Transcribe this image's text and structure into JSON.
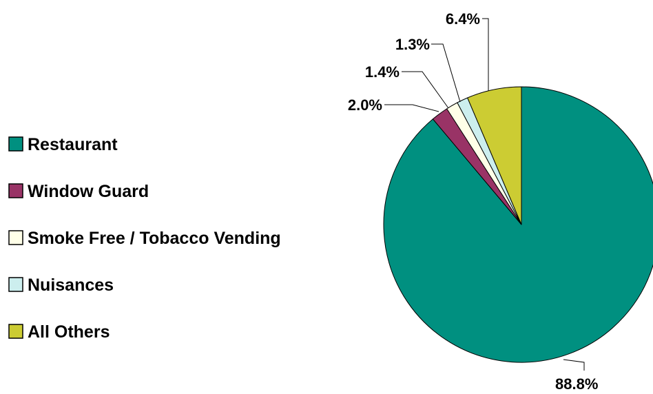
{
  "chart_data": {
    "type": "pie",
    "start_angle_deg": 0,
    "direction": "clockwise",
    "legend_position": "left",
    "slices": [
      {
        "name": "Restaurant",
        "value": 88.8,
        "label": "88.8%",
        "color": "#009080"
      },
      {
        "name": "Window Guard",
        "value": 2.0,
        "label": "2.0%",
        "color": "#993366"
      },
      {
        "name": "Smoke Free / Tobacco Vending",
        "value": 1.4,
        "label": "1.4%",
        "color": "#FFFFE8"
      },
      {
        "name": "Nuisances",
        "value": 1.3,
        "label": "1.3%",
        "color": "#CCEEEE"
      },
      {
        "name": "All Others",
        "value": 6.4,
        "label": "6.4%",
        "color": "#CCCC33"
      }
    ]
  }
}
